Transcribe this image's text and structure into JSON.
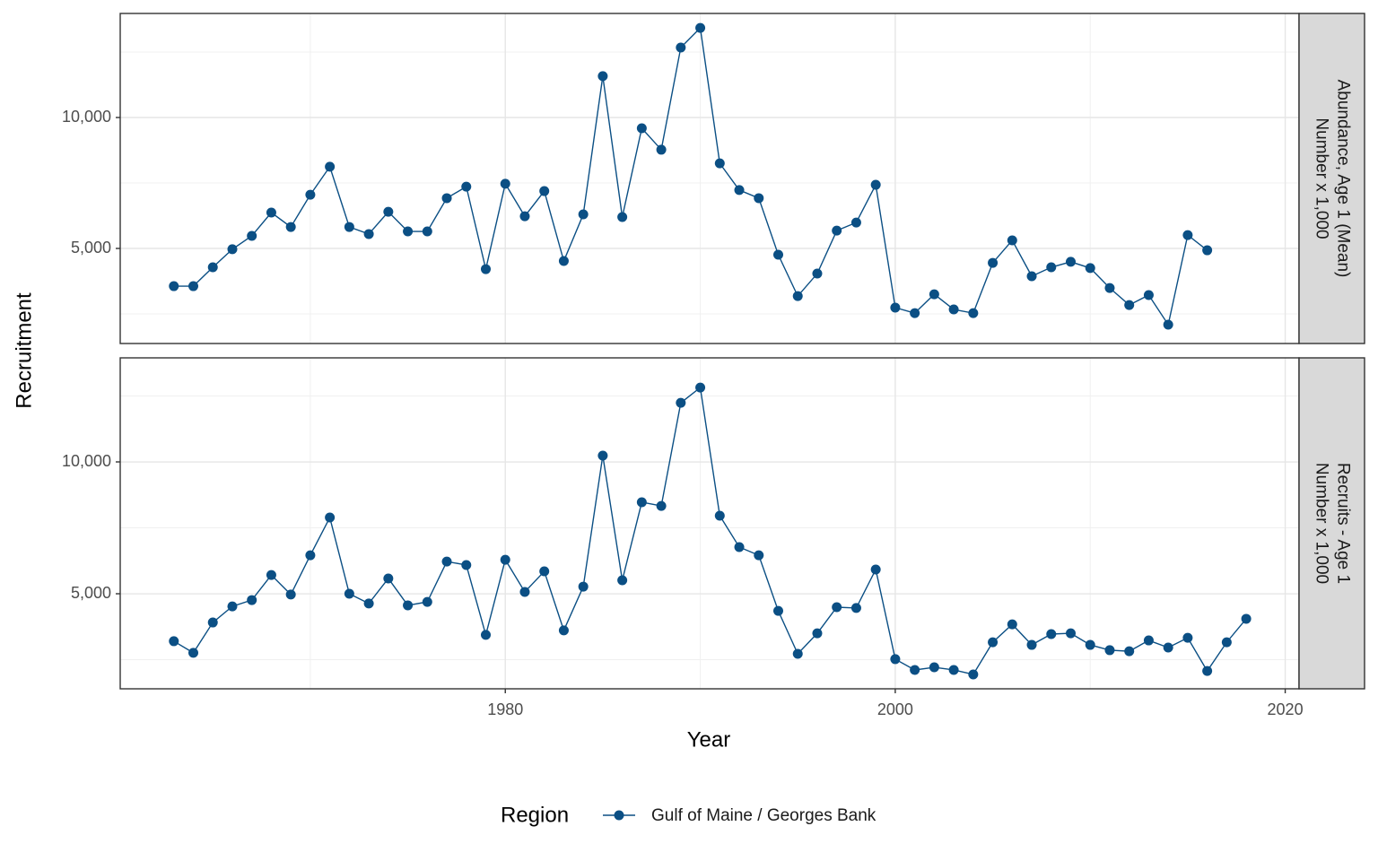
{
  "figure": {
    "xlabel": "Year",
    "ylabel": "Recruitment",
    "legend_title": "Region",
    "legend_position": "bottom"
  },
  "chart_data": [
    {
      "type": "line",
      "strip": [
        "Abundance, Age 1 (Mean)",
        "Number x 1,000"
      ],
      "x": [
        1963,
        1964,
        1965,
        1966,
        1967,
        1968,
        1969,
        1970,
        1971,
        1972,
        1973,
        1974,
        1975,
        1976,
        1977,
        1978,
        1979,
        1980,
        1981,
        1982,
        1983,
        1984,
        1985,
        1986,
        1987,
        1988,
        1989,
        1990,
        1991,
        1992,
        1993,
        1994,
        1995,
        1996,
        1997,
        1998,
        1999,
        2000,
        2001,
        2002,
        2003,
        2004,
        2005,
        2006,
        2007,
        2008,
        2009,
        2010,
        2011,
        2012,
        2013,
        2014,
        2015,
        2016
      ],
      "series": [
        {
          "name": "Gulf of Maine / Georges Bank",
          "color": "#0b4f84",
          "values": [
            3560,
            3560,
            4280,
            4970,
            5480,
            6370,
            5820,
            7050,
            8120,
            5820,
            5550,
            6400,
            5650,
            5650,
            6920,
            7360,
            4210,
            7470,
            6230,
            7190,
            4520,
            6300,
            11580,
            6200,
            9590,
            8770,
            12670,
            13420,
            8250,
            7230,
            6920,
            4760,
            3180,
            4040,
            5680,
            5990,
            7430,
            2740,
            2530,
            3250,
            2670,
            2530,
            4450,
            5310,
            3940,
            4280,
            4490,
            4250,
            3490,
            2840,
            3220,
            2090,
            5510,
            4930
          ]
        }
      ],
      "xlim": [
        1960.25,
        2020.71
      ],
      "xticks": [
        1980,
        2000,
        2020
      ],
      "x_minor_grid": [
        1970,
        1990,
        2010
      ],
      "show_xtick_labels": false,
      "ylim": [
        1370,
        13973
      ],
      "yticks": [
        {
          "value": 5000,
          "label": "5,000"
        },
        {
          "value": 10000,
          "label": "10,000"
        }
      ],
      "y_minor_grid": [
        2500,
        7500,
        12500
      ],
      "grid": true
    },
    {
      "type": "line",
      "strip": [
        "Recruits - Age 1",
        "Number x 1,000"
      ],
      "x": [
        1963,
        1964,
        1965,
        1966,
        1967,
        1968,
        1969,
        1970,
        1971,
        1972,
        1973,
        1974,
        1975,
        1976,
        1977,
        1978,
        1979,
        1980,
        1981,
        1982,
        1983,
        1984,
        1985,
        1986,
        1987,
        1988,
        1989,
        1990,
        1991,
        1992,
        1993,
        1994,
        1995,
        1996,
        1997,
        1998,
        1999,
        2000,
        2001,
        2002,
        2003,
        2004,
        2005,
        2006,
        2007,
        2008,
        2009,
        2010,
        2011,
        2012,
        2013,
        2014,
        2015,
        2016,
        2017,
        2018
      ],
      "series": [
        {
          "name": "Gulf of Maine / Georges Bank",
          "color": "#0b4f84",
          "values": [
            3200,
            2760,
            3910,
            4520,
            4760,
            5710,
            4970,
            6460,
            7890,
            5000,
            4630,
            5580,
            4560,
            4690,
            6220,
            6090,
            3440,
            6290,
            5070,
            5850,
            3610,
            5270,
            10240,
            5510,
            8470,
            8330,
            12240,
            12820,
            7960,
            6770,
            6460,
            4350,
            2720,
            3500,
            4490,
            4460,
            5920,
            2520,
            2110,
            2210,
            2110,
            1940,
            3160,
            3840,
            3060,
            3470,
            3500,
            3060,
            2860,
            2820,
            3230,
            2960,
            3330,
            2070,
            3160,
            4050
          ]
        }
      ],
      "xlim": [
        1960.25,
        2020.71
      ],
      "xticks": [
        1980,
        2000,
        2020
      ],
      "x_minor_grid": [
        1970,
        1990,
        2010
      ],
      "show_xtick_labels": true,
      "ylim": [
        1395,
        13946
      ],
      "yticks": [
        {
          "value": 5000,
          "label": "5,000"
        },
        {
          "value": 10000,
          "label": "10,000"
        }
      ],
      "y_minor_grid": [
        2500,
        7500,
        12500
      ],
      "grid": true
    }
  ]
}
